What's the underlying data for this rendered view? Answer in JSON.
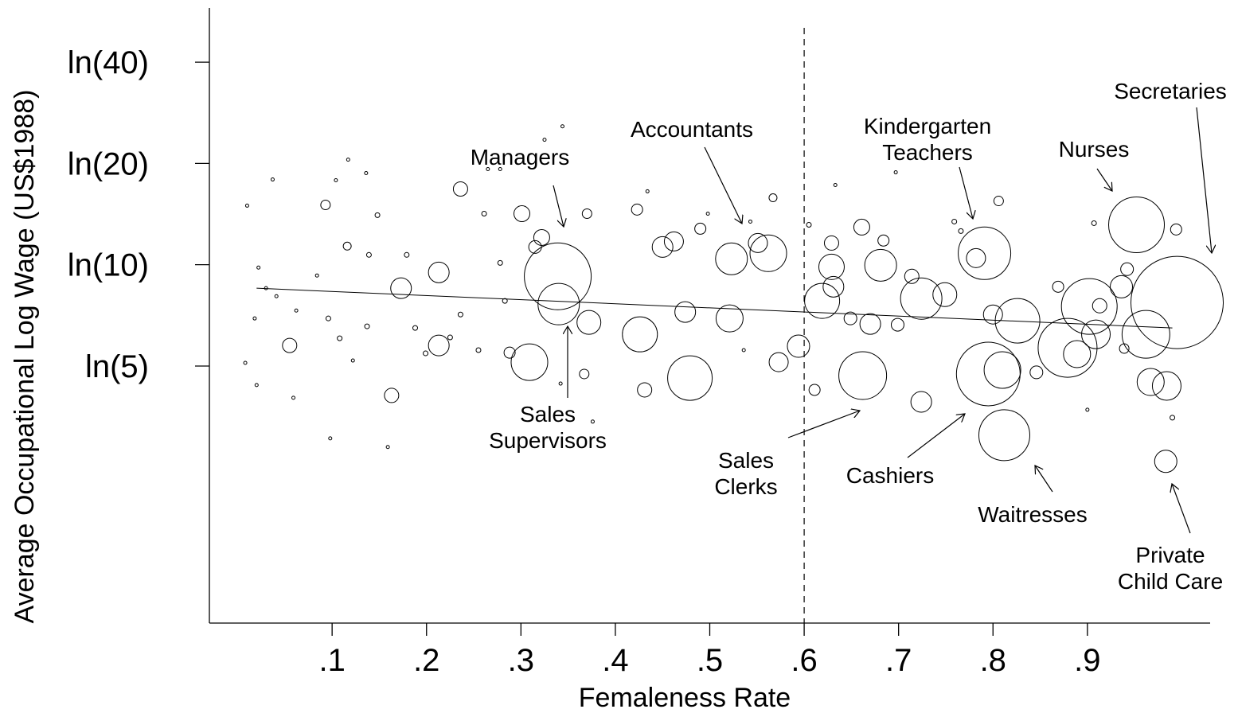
{
  "chart_data": {
    "type": "scatter",
    "x_label": "Femaleness Rate",
    "y_label": "Average Occupational Log Wage (US$1988)",
    "xlim": [
      -0.03,
      1.03
    ],
    "ylim": [
      -0.15,
      4.06
    ],
    "xticks": [
      {
        "value": 0.1,
        "label": ".1"
      },
      {
        "value": 0.2,
        "label": ".2"
      },
      {
        "value": 0.3,
        "label": ".3"
      },
      {
        "value": 0.4,
        "label": ".4"
      },
      {
        "value": 0.5,
        "label": ".5"
      },
      {
        "value": 0.6,
        "label": ".6"
      },
      {
        "value": 0.7,
        "label": ".7"
      },
      {
        "value": 0.8,
        "label": ".8"
      },
      {
        "value": 0.9,
        "label": ".9"
      }
    ],
    "yticks": [
      {
        "value": 1.609,
        "label": "ln(5)"
      },
      {
        "value": 2.303,
        "label": "ln(10)"
      },
      {
        "value": 2.996,
        "label": "ln(20)"
      },
      {
        "value": 3.689,
        "label": "ln(40)"
      }
    ],
    "reference_x": 0.6,
    "fit": {
      "x": [
        0.02,
        0.99
      ],
      "y": [
        2.142,
        1.87
      ]
    },
    "color": "#000000",
    "x": [
      0.339,
      0.34,
      0.309,
      0.995,
      0.952,
      0.791,
      0.795,
      0.812,
      0.983,
      0.662,
      0.479,
      0.879,
      0.902,
      0.962,
      0.562,
      0.826,
      0.724,
      0.426,
      0.681,
      0.619,
      0.81,
      0.909,
      0.523,
      0.521,
      0.594,
      0.629,
      0.474,
      0.372,
      0.749,
      0.889,
      0.967,
      0.984,
      0.936,
      0.573,
      0.724,
      0.45,
      0.462,
      0.551,
      0.301,
      0.236,
      0.173,
      0.213,
      0.213,
      0.163,
      0.055,
      0.67,
      0.661,
      0.629,
      0.8,
      0.994,
      0.806,
      0.846,
      0.431,
      0.611,
      0.699,
      0.782,
      0.714,
      0.631,
      0.649,
      0.288,
      0.322,
      0.315,
      0.49,
      0.423,
      0.684,
      0.869,
      0.913,
      0.939,
      0.942,
      0.37,
      0.01,
      0.037,
      0.022,
      0.03,
      0.018,
      0.041,
      0.062,
      0.084,
      0.093,
      0.104,
      0.117,
      0.136,
      0.148,
      0.116,
      0.139,
      0.096,
      0.108,
      0.122,
      0.137,
      0.098,
      0.159,
      0.059,
      0.02,
      0.008,
      0.179,
      0.188,
      0.199,
      0.225,
      0.236,
      0.255,
      0.261,
      0.278,
      0.283,
      0.325,
      0.344,
      0.265,
      0.278,
      0.434,
      0.498,
      0.543,
      0.567,
      0.633,
      0.697,
      0.759,
      0.766,
      0.9,
      0.99,
      0.907,
      0.605,
      0.376,
      0.342,
      0.367,
      0.536
    ],
    "y": [
      2.223,
      2.033,
      1.636,
      2.044,
      2.576,
      2.381,
      1.555,
      1.136,
      0.957,
      1.544,
      1.527,
      1.734,
      2.017,
      1.826,
      2.381,
      1.919,
      2.071,
      1.826,
      2.299,
      2.055,
      1.582,
      1.826,
      2.343,
      1.935,
      1.745,
      2.288,
      1.979,
      1.908,
      2.098,
      1.691,
      1.5,
      1.473,
      2.152,
      1.636,
      1.364,
      2.424,
      2.462,
      2.451,
      2.652,
      2.821,
      2.142,
      2.25,
      1.75,
      1.408,
      1.75,
      1.897,
      2.56,
      2.451,
      1.962,
      2.544,
      2.739,
      1.566,
      1.446,
      1.446,
      1.892,
      2.348,
      2.223,
      2.152,
      1.935,
      1.701,
      2.489,
      2.424,
      2.549,
      2.68,
      2.468,
      2.152,
      2.022,
      1.729,
      2.272,
      2.652,
      2.707,
      2.886,
      2.283,
      2.142,
      1.935,
      2.087,
      1.989,
      2.229,
      2.712,
      2.881,
      3.022,
      2.93,
      2.642,
      2.43,
      2.37,
      1.935,
      1.799,
      1.647,
      1.881,
      1.114,
      1.055,
      1.392,
      1.479,
      1.631,
      2.37,
      1.87,
      1.696,
      1.805,
      1.962,
      1.718,
      2.652,
      2.315,
      2.055,
      3.158,
      3.25,
      2.957,
      2.957,
      2.805,
      2.652,
      2.598,
      2.761,
      2.848,
      2.935,
      2.598,
      2.533,
      1.31,
      1.256,
      2.587,
      2.576,
      1.229,
      1.489,
      1.555,
      1.718
    ],
    "sizes": [
      42,
      26,
      23,
      58,
      35,
      33,
      40,
      32,
      14,
      30,
      28,
      37,
      35,
      30,
      23,
      28,
      26,
      22,
      20,
      22,
      23,
      18,
      20,
      17,
      14,
      16,
      13,
      15,
      15,
      17,
      17,
      18,
      14,
      12,
      13,
      13,
      12,
      12,
      10,
      9,
      13,
      13,
      13,
      9,
      9,
      13,
      10,
      9,
      12,
      7,
      6,
      8,
      9,
      7,
      8,
      12,
      9,
      13,
      8,
      7,
      10,
      8,
      7,
      7,
      7,
      7,
      9,
      6,
      8,
      6,
      2,
      2,
      2,
      2,
      2,
      2,
      2,
      2,
      6,
      2,
      2,
      2,
      3,
      5,
      3,
      3,
      3,
      2,
      3,
      2,
      2,
      2,
      2,
      2,
      3,
      3,
      3,
      3,
      3,
      3,
      3,
      3,
      3,
      2,
      2,
      2,
      2,
      2,
      2,
      2,
      5,
      2,
      2,
      3,
      3,
      2,
      3,
      3,
      3,
      2,
      2,
      6,
      2
    ],
    "annotations": [
      {
        "lines": [
          "Managers"
        ]
      },
      {
        "lines": [
          "Accountants"
        ]
      },
      {
        "lines": [
          "Kindergarten",
          "Teachers"
        ]
      },
      {
        "lines": [
          "Nurses"
        ]
      },
      {
        "lines": [
          "Secretaries"
        ]
      },
      {
        "lines": [
          "Sales",
          "Supervisors"
        ]
      },
      {
        "lines": [
          "Sales",
          "Clerks"
        ]
      },
      {
        "lines": [
          "Cashiers"
        ]
      },
      {
        "lines": [
          "Waitresses"
        ]
      },
      {
        "lines": [
          "Private",
          "Child Care"
        ]
      }
    ]
  }
}
